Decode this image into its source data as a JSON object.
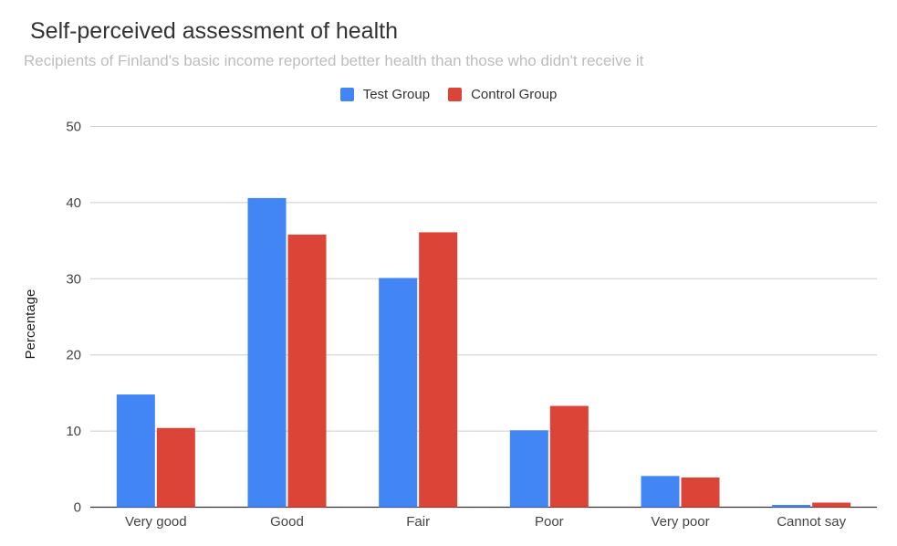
{
  "chart_data": {
    "type": "bar",
    "title": "Self-perceived assessment of health",
    "subtitle": "Recipients of Finland's basic income reported better health than those who didn't receive it",
    "xlabel": "",
    "ylabel": "Percentage",
    "ylim": [
      0,
      50
    ],
    "yticks": [
      0,
      10,
      20,
      30,
      40,
      50
    ],
    "categories": [
      "Very good",
      "Good",
      "Fair",
      "Poor",
      "Very poor",
      "Cannot say"
    ],
    "series": [
      {
        "name": "Test Group",
        "color": "#4285f4",
        "values": [
          14.8,
          40.6,
          30.1,
          10.1,
          4.1,
          0.3
        ]
      },
      {
        "name": "Control Group",
        "color": "#db4437",
        "values": [
          10.4,
          35.8,
          36.1,
          13.3,
          3.9,
          0.6
        ]
      }
    ],
    "grid": true,
    "legend_position": "top"
  }
}
